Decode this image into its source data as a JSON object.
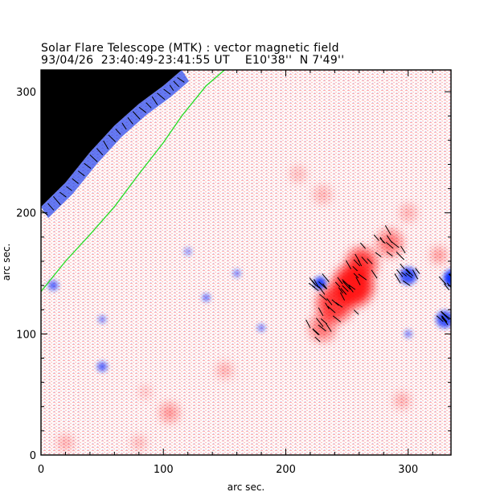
{
  "header": {
    "title": "Solar Flare Telescope (MTK) : vector magnetic field",
    "subtitle": "93/04/26  23:40:49-23:41:55 UT    E10'38''  N 7'49''"
  },
  "chart_data": {
    "type": "heatmap",
    "title": "Solar Flare Telescope (MTK) : vector magnetic field",
    "subtitle": "93/04/26  23:40:49-23:41:55 UT    E10'38''  N 7'49''",
    "xlabel": "arc sec.",
    "ylabel": "arc sec.",
    "xlim": [
      0,
      335
    ],
    "ylim": [
      0,
      318
    ],
    "xticks": [
      0,
      100,
      200,
      300
    ],
    "yticks": [
      0,
      100,
      200,
      300
    ],
    "colors": {
      "positive": "#ff1010",
      "negative": "#1030ff",
      "background": "#ffffff",
      "off_disk": "#000000",
      "limb_contour": "#22dd22",
      "vectors": "#000000"
    },
    "limb_curve": [
      [
        0,
        205
      ],
      [
        20,
        225
      ],
      [
        40,
        250
      ],
      [
        60,
        272
      ],
      [
        80,
        290
      ],
      [
        100,
        305
      ],
      [
        115,
        318
      ]
    ],
    "neutral_line": [
      [
        0,
        135
      ],
      [
        20,
        160
      ],
      [
        40,
        182
      ],
      [
        60,
        205
      ],
      [
        80,
        232
      ],
      [
        100,
        258
      ],
      [
        115,
        280
      ],
      [
        135,
        305
      ],
      [
        150,
        318
      ]
    ],
    "positive_regions": [
      {
        "x": 255,
        "y": 140,
        "r": 16,
        "s": 0.95
      },
      {
        "x": 240,
        "y": 125,
        "r": 14,
        "s": 0.8
      },
      {
        "x": 262,
        "y": 158,
        "r": 12,
        "s": 0.8
      },
      {
        "x": 285,
        "y": 175,
        "r": 10,
        "s": 0.55
      },
      {
        "x": 230,
        "y": 105,
        "r": 10,
        "s": 0.55
      },
      {
        "x": 300,
        "y": 200,
        "r": 6,
        "s": 0.35
      },
      {
        "x": 230,
        "y": 215,
        "r": 6,
        "s": 0.35
      },
      {
        "x": 210,
        "y": 232,
        "r": 5,
        "s": 0.35
      },
      {
        "x": 325,
        "y": 165,
        "r": 6,
        "s": 0.4
      },
      {
        "x": 105,
        "y": 35,
        "r": 7,
        "s": 0.45
      },
      {
        "x": 85,
        "y": 52,
        "r": 4,
        "s": 0.3
      },
      {
        "x": 150,
        "y": 70,
        "r": 6,
        "s": 0.3
      },
      {
        "x": 295,
        "y": 45,
        "r": 6,
        "s": 0.3
      },
      {
        "x": 20,
        "y": 10,
        "r": 6,
        "s": 0.3
      },
      {
        "x": 80,
        "y": 10,
        "r": 5,
        "s": 0.3
      }
    ],
    "negative_regions": [
      {
        "x": 336,
        "y": 146,
        "r": 7,
        "s": 1.0
      },
      {
        "x": 330,
        "y": 112,
        "r": 7,
        "s": 0.8
      },
      {
        "x": 300,
        "y": 148,
        "r": 7,
        "s": 0.8
      },
      {
        "x": 228,
        "y": 142,
        "r": 5,
        "s": 0.9
      },
      {
        "x": 50,
        "y": 73,
        "r": 4,
        "s": 0.7
      },
      {
        "x": 135,
        "y": 130,
        "r": 3,
        "s": 0.7
      },
      {
        "x": 160,
        "y": 150,
        "r": 3,
        "s": 0.6
      },
      {
        "x": 180,
        "y": 105,
        "r": 3,
        "s": 0.6
      },
      {
        "x": 300,
        "y": 100,
        "r": 3,
        "s": 0.6
      },
      {
        "x": 120,
        "y": 168,
        "r": 3,
        "s": 0.5
      },
      {
        "x": 50,
        "y": 112,
        "r": 3,
        "s": 0.6
      },
      {
        "x": 10,
        "y": 140,
        "r": 4,
        "s": 0.7
      }
    ]
  }
}
